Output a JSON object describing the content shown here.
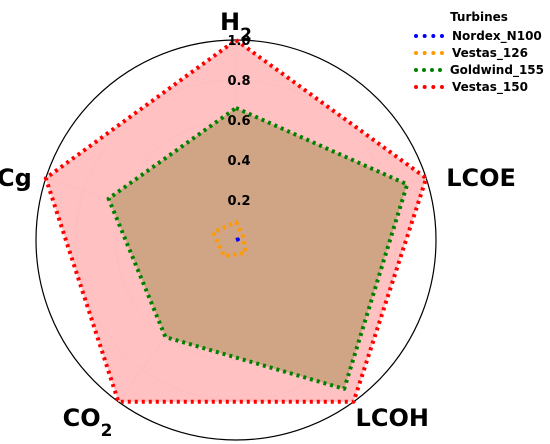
{
  "chart_data": {
    "type": "radar",
    "axes": [
      "H2",
      "LCOE",
      "LCOH",
      "CO2",
      "CCg"
    ],
    "axis_label_sub": {
      "H2": "2",
      "CO2": "2"
    },
    "rlim": [
      0,
      1.0
    ],
    "rticks": [
      "0.2",
      "0.4",
      "0.6",
      "0.8",
      "1.0"
    ],
    "grid": true,
    "legend": {
      "title": "Turbines",
      "position": "top-right"
    },
    "series": [
      {
        "name": "Nordex_N100",
        "color": "#0000ff",
        "fill": false,
        "values": [
          0.0,
          0.01,
          0.0,
          0.0,
          0.0
        ]
      },
      {
        "name": "Vestas_126",
        "color": "#ff9900",
        "fill": false,
        "values": [
          0.09,
          0.04,
          0.08,
          0.1,
          0.12
        ]
      },
      {
        "name": "Goldwind_155",
        "color": "#008000",
        "fill": true,
        "fill_color": "#c8a07a",
        "values": [
          0.66,
          0.9,
          0.92,
          0.6,
          0.67
        ]
      },
      {
        "name": "Vestas_150",
        "color": "#ff0000",
        "fill": true,
        "fill_color": "#ffb6b6",
        "values": [
          1.0,
          1.0,
          1.0,
          1.0,
          1.0
        ]
      }
    ]
  }
}
